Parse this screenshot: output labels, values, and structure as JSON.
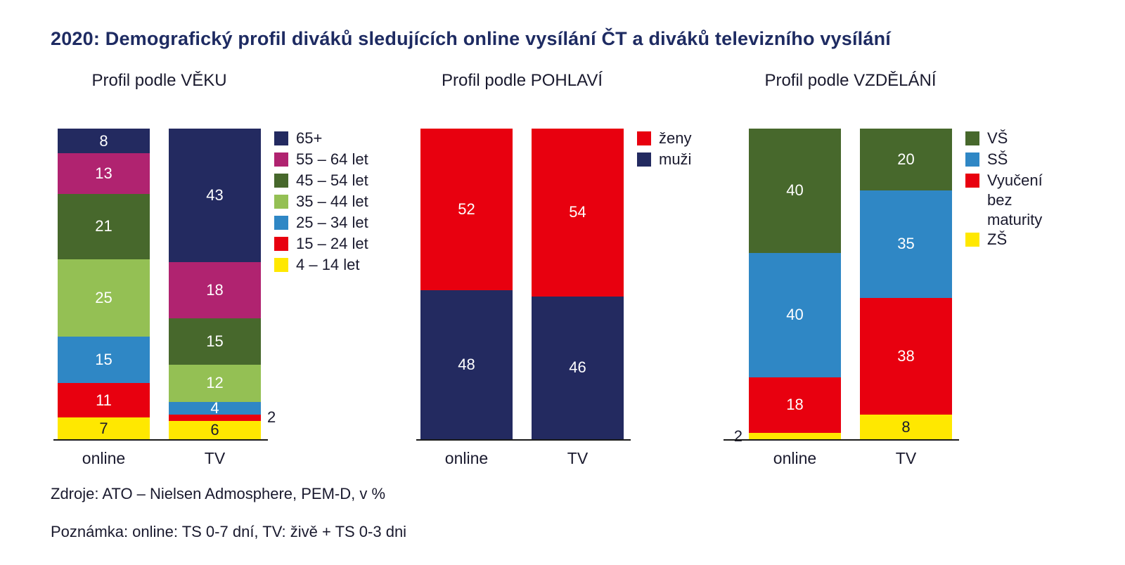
{
  "page": {
    "title": "2020: Demografický profil diváků sledujících online vysílání ČT a diváků televizního vysílání",
    "source_note": "Zdroje: ATO – Nielsen Admosphere, PEM-D, v %",
    "footnote": "Poznámka: online: TS 0-7 dní, TV: živě + TS 0-3 dni"
  },
  "colors": {
    "title_navy": "#1e2b62",
    "text_dark": "#1a1a2e",
    "axis_line": "#1a1a1a",
    "navy": "#232a60",
    "magenta": "#b02370",
    "dark_green": "#47682c",
    "light_green": "#94c054",
    "blue": "#2f87c5",
    "red": "#e8000f",
    "yellow": "#ffe800"
  },
  "chart_data": [
    {
      "type": "bar",
      "stacked": true,
      "title": "Profil podle VĚKU",
      "unit": "%",
      "ylim": [
        0,
        100
      ],
      "legend_position": "right",
      "categories": [
        "online",
        "TV"
      ],
      "series": [
        {
          "name": "65+",
          "color": "#232a60",
          "label_color": "#ffffff",
          "values": [
            8,
            43
          ]
        },
        {
          "name": "55 – 64 let",
          "color": "#b02370",
          "label_color": "#ffffff",
          "values": [
            13,
            18
          ]
        },
        {
          "name": "45 – 54 let",
          "color": "#47682c",
          "label_color": "#ffffff",
          "values": [
            21,
            15
          ]
        },
        {
          "name": "35 – 44 let",
          "color": "#94c054",
          "label_color": "#ffffff",
          "values": [
            25,
            12
          ]
        },
        {
          "name": "25 – 34 let",
          "color": "#2f87c5",
          "label_color": "#ffffff",
          "values": [
            15,
            4
          ]
        },
        {
          "name": "15 – 24 let",
          "color": "#e8000f",
          "label_color": "#ffffff",
          "values": [
            11,
            2
          ]
        },
        {
          "name": "4 – 14 let",
          "color": "#ffe800",
          "label_color": "#1a1a2e",
          "values": [
            7,
            6
          ]
        }
      ]
    },
    {
      "type": "bar",
      "stacked": true,
      "title": "Profil podle POHLAVÍ",
      "unit": "%",
      "ylim": [
        0,
        100
      ],
      "legend_position": "right",
      "categories": [
        "online",
        "TV"
      ],
      "series": [
        {
          "name": "ženy",
          "color": "#e8000f",
          "label_color": "#ffffff",
          "values": [
            52,
            54
          ]
        },
        {
          "name": "muži",
          "color": "#232a60",
          "label_color": "#ffffff",
          "values": [
            48,
            46
          ]
        }
      ]
    },
    {
      "type": "bar",
      "stacked": true,
      "title": "Profil podle VZDĚLÁNÍ",
      "unit": "%",
      "ylim": [
        0,
        100
      ],
      "legend_position": "right",
      "categories": [
        "online",
        "TV"
      ],
      "series": [
        {
          "name": "VŠ",
          "color": "#47682c",
          "label_color": "#ffffff",
          "values": [
            40,
            20
          ]
        },
        {
          "name": "SŠ",
          "color": "#2f87c5",
          "label_color": "#ffffff",
          "values": [
            40,
            35
          ]
        },
        {
          "name": "Vyučení bez maturity",
          "color": "#e8000f",
          "label_color": "#ffffff",
          "values": [
            18,
            38
          ]
        },
        {
          "name": "ZŠ",
          "color": "#ffe800",
          "label_color": "#1a1a2e",
          "values": [
            2,
            8
          ]
        }
      ]
    }
  ]
}
